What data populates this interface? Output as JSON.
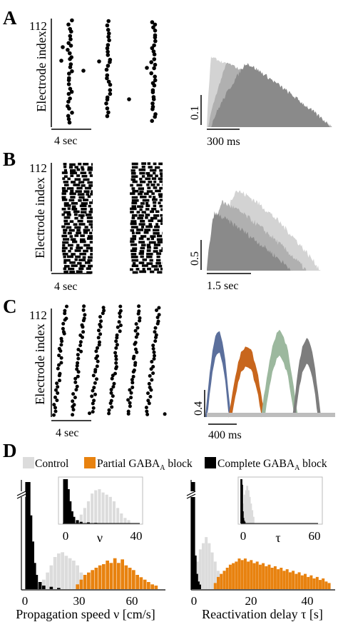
{
  "panels": {
    "A": {
      "label": "A",
      "raster": {
        "ylabel": "Electrode index",
        "ytick": "112",
        "scalebar_label": "4 sec"
      },
      "profile": {
        "amp_label": "0.1",
        "time_label": "300 ms"
      }
    },
    "B": {
      "label": "B",
      "raster": {
        "ylabel": "Electrode index",
        "ytick": "112",
        "scalebar_label": "4 sec"
      },
      "profile": {
        "amp_label": "0.5",
        "time_label": "1.5 sec"
      }
    },
    "C": {
      "label": "C",
      "raster": {
        "ylabel": "Electrode index",
        "ytick": "112",
        "scalebar_label": "4 sec"
      },
      "profile": {
        "amp_label": "0.4",
        "time_label": "400 ms"
      }
    },
    "D": {
      "label": "D",
      "legend": [
        {
          "name": "Control",
          "color": "#dcdcdc"
        },
        {
          "name": "Partial GABA",
          "sub": "A",
          "tail": " block",
          "color": "#e8820f"
        },
        {
          "name": "Complete GABA",
          "sub": "A",
          "tail": " block",
          "color": "#000000"
        }
      ]
    }
  },
  "colors": {
    "control": "#dcdcdc",
    "partial": "#e8820f",
    "complete": "#000000",
    "profile_light": "#d3d3d3",
    "profile_mid": "#b0b0b0",
    "profile_dark": "#8a8a8a",
    "blue": "#5b6f9c",
    "orange": "#c8661d",
    "green": "#9cb89e",
    "gray": "#7d7d7d"
  },
  "chart_data": [
    {
      "type": "bar",
      "xlabel": "Propagation speed ν [cm/s]",
      "ylabel": "",
      "xticks": [
        "0",
        "30",
        "60"
      ],
      "xlim": [
        -5,
        75
      ],
      "series": [
        {
          "name": "Complete GABA_A block",
          "color": "#000000",
          "x": [
            1,
            2,
            3,
            4,
            5,
            6,
            8,
            10,
            14,
            18
          ],
          "values": [
            200,
            120,
            62,
            40,
            22,
            12,
            6,
            3,
            2,
            1
          ]
        },
        {
          "name": "Control",
          "color": "#dcdcdc",
          "x": [
            10,
            12,
            14,
            16,
            18,
            20,
            22,
            24,
            26,
            28,
            30,
            32,
            34,
            36
          ],
          "values": [
            8,
            14,
            20,
            27,
            30,
            31,
            28,
            26,
            24,
            20,
            14,
            9,
            5,
            3
          ]
        },
        {
          "name": "Partial GABA_A block",
          "color": "#e8820f",
          "x": [
            28,
            30,
            32,
            34,
            36,
            38,
            40,
            42,
            44,
            46,
            48,
            50,
            52,
            54,
            56,
            58,
            60,
            62,
            64,
            66,
            68,
            70
          ],
          "values": [
            4,
            8,
            12,
            14,
            16,
            18,
            20,
            21,
            24,
            22,
            26,
            22,
            25,
            20,
            18,
            16,
            12,
            10,
            8,
            6,
            4,
            3
          ]
        }
      ],
      "inset": {
        "xlabel": "ν",
        "xticks": [
          "0",
          "40"
        ]
      }
    },
    {
      "type": "bar",
      "xlabel": "Reactivation delay τ [s]",
      "ylabel": "",
      "xticks": [
        "0",
        "20",
        "40"
      ],
      "xlim": [
        -1,
        48
      ],
      "series": [
        {
          "name": "Complete GABA_A block",
          "color": "#000000",
          "x": [
            0.3,
            0.8,
            1.3,
            1.8,
            2.3,
            2.8
          ],
          "values": [
            210,
            70,
            22,
            10,
            5,
            3
          ]
        },
        {
          "name": "Control",
          "color": "#dcdcdc",
          "x": [
            2,
            3,
            4,
            5,
            6,
            7,
            8,
            9,
            10
          ],
          "values": [
            18,
            26,
            30,
            34,
            30,
            24,
            18,
            12,
            6
          ]
        },
        {
          "name": "Partial GABA_A block",
          "color": "#e8820f",
          "x": [
            8,
            9,
            10,
            11,
            12,
            13,
            14,
            15,
            16,
            17,
            18,
            19,
            20,
            21,
            22,
            23,
            24,
            25,
            26,
            27,
            28,
            29,
            30,
            31,
            32,
            33,
            34,
            35,
            36,
            37,
            38,
            39,
            40,
            41,
            42,
            43,
            44,
            45,
            46
          ],
          "values": [
            4,
            8,
            10,
            12,
            14,
            16,
            17,
            18,
            20,
            19,
            20,
            18,
            19,
            17,
            18,
            16,
            17,
            15,
            16,
            14,
            15,
            13,
            14,
            12,
            13,
            11,
            12,
            10,
            11,
            9,
            10,
            8,
            9,
            7,
            8,
            6,
            7,
            5,
            4
          ]
        }
      ],
      "inset": {
        "xlabel": "τ",
        "xticks": [
          "0",
          "60"
        ]
      }
    }
  ]
}
